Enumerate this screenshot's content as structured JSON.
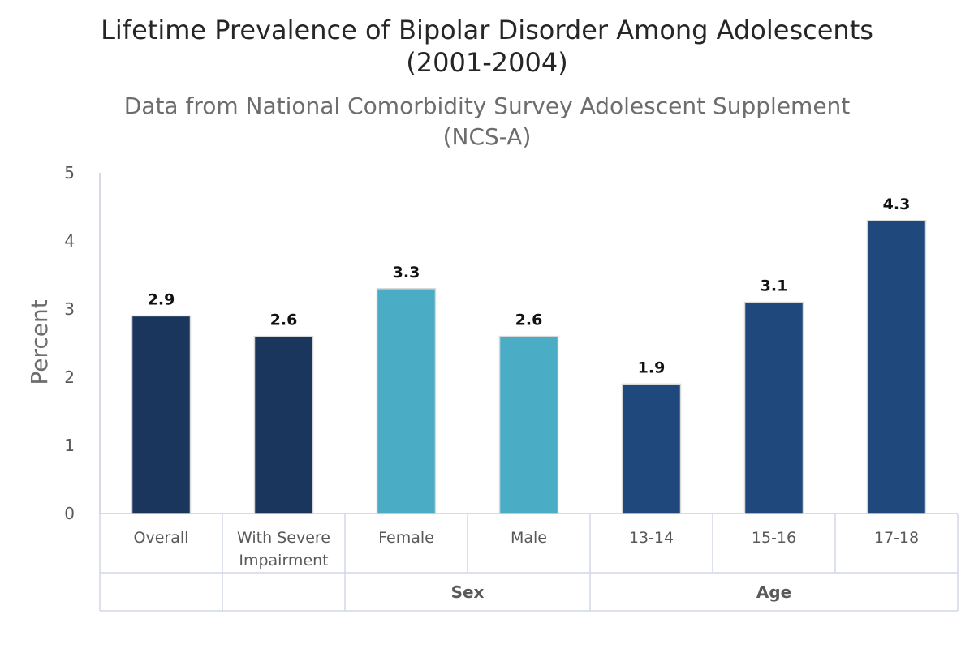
{
  "chart_data": {
    "type": "bar",
    "title_line1": "Lifetime Prevalence of Bipolar Disorder Among Adolescents",
    "title_line2": "(2001-2004)",
    "subtitle_line1": "Data from National Comorbidity Survey Adolescent Supplement",
    "subtitle_line2": "(NCS-A)",
    "ylabel": "Percent",
    "ylim": [
      0,
      5
    ],
    "yticks": [
      "0",
      "1",
      "2",
      "3",
      "4",
      "5"
    ],
    "categories": [
      {
        "line1": "Overall",
        "line2": ""
      },
      {
        "line1": "With Severe",
        "line2": "Impairment"
      },
      {
        "line1": "Female",
        "line2": ""
      },
      {
        "line1": "Male",
        "line2": ""
      },
      {
        "line1": "13-14",
        "line2": ""
      },
      {
        "line1": "15-16",
        "line2": ""
      },
      {
        "line1": "17-18",
        "line2": ""
      }
    ],
    "values": [
      2.9,
      2.6,
      3.3,
      2.6,
      1.9,
      3.1,
      4.3
    ],
    "value_labels": [
      "2.9",
      "2.6",
      "3.3",
      "2.6",
      "1.9",
      "3.1",
      "4.3"
    ],
    "colors": [
      "#1a365d",
      "#1a365d",
      "#4bacc6",
      "#4bacc6",
      "#1f497d",
      "#1f497d",
      "#1f497d"
    ],
    "groups": [
      {
        "label": "",
        "start": 0,
        "end": 0
      },
      {
        "label": "",
        "start": 1,
        "end": 1
      },
      {
        "label": "Sex",
        "start": 2,
        "end": 3
      },
      {
        "label": "Age",
        "start": 4,
        "end": 6
      }
    ]
  }
}
